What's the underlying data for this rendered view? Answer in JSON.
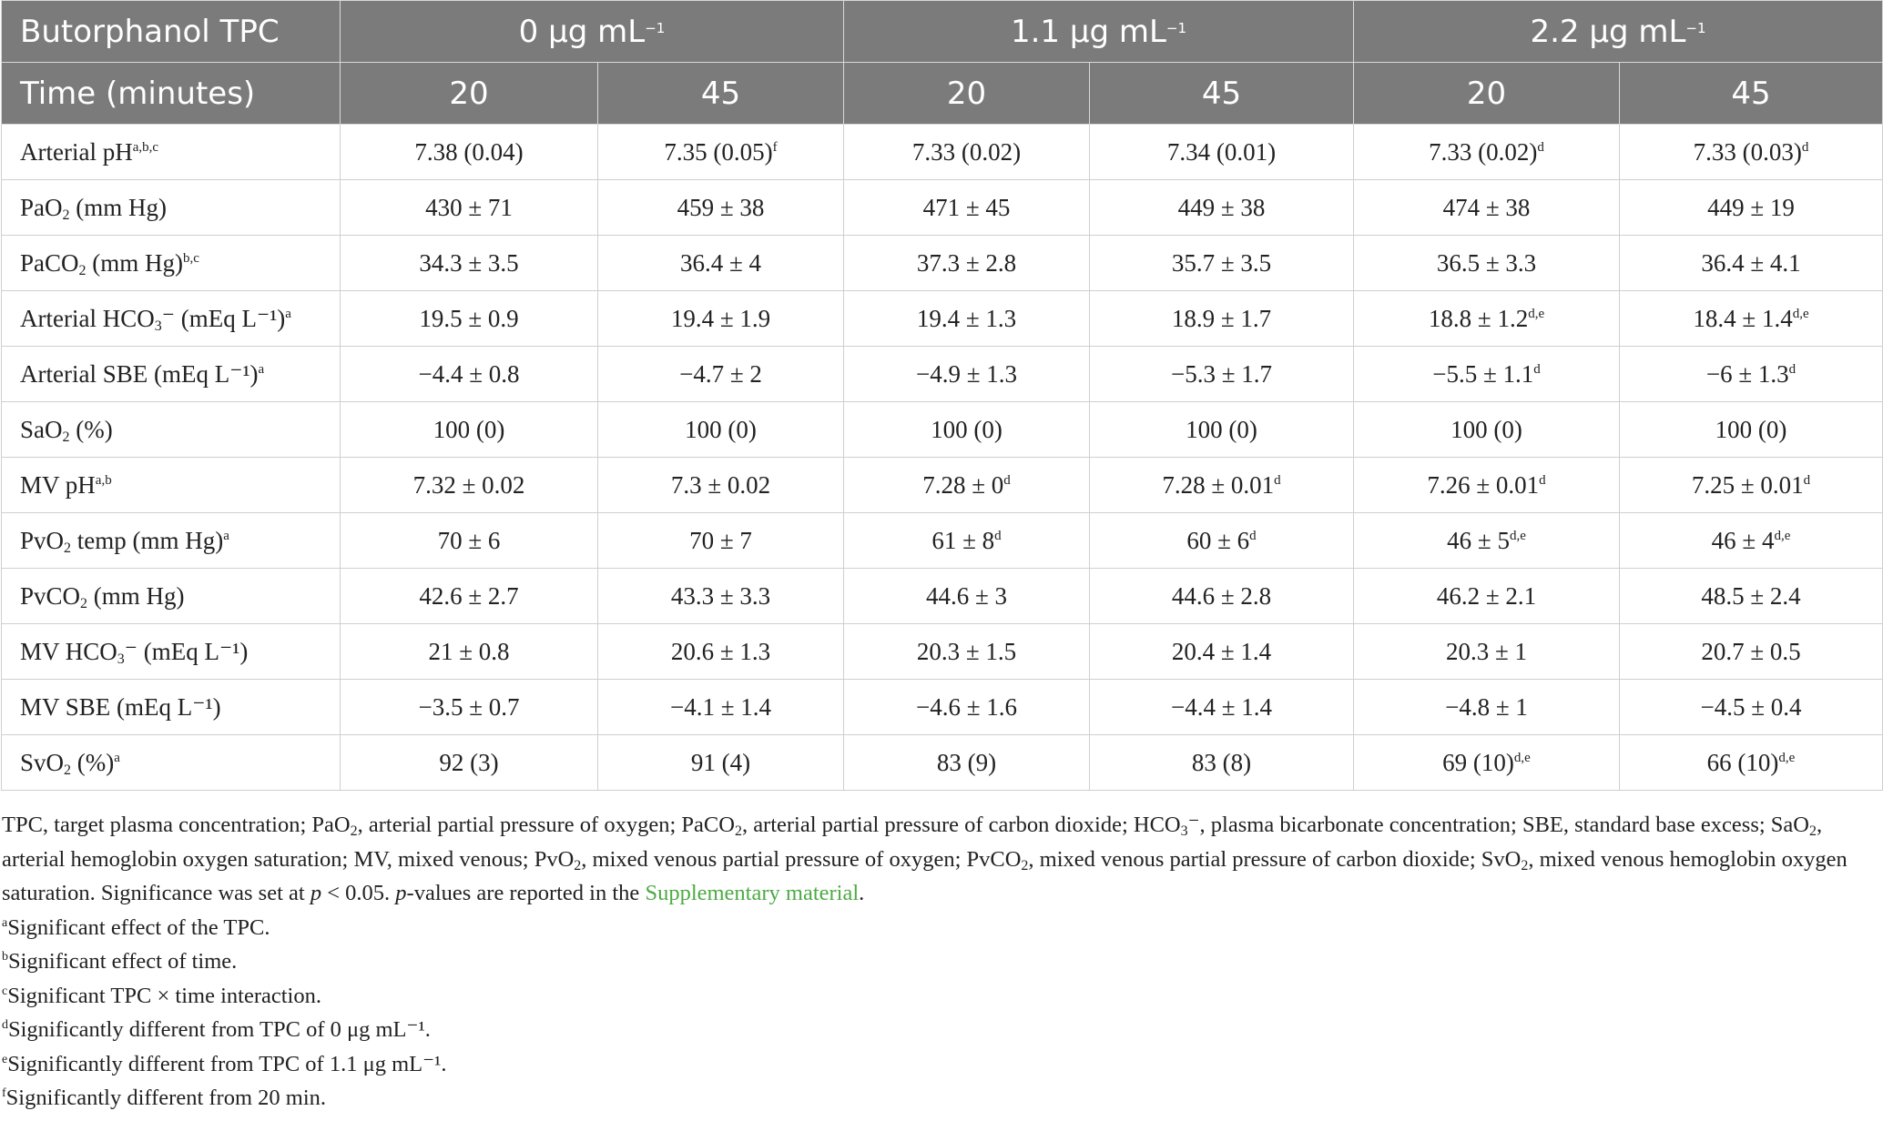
{
  "header": {
    "group_label": "Butorphanol TPC",
    "time_label": "Time (minutes)",
    "groups": [
      {
        "value": "0 μg mL",
        "exp": "−1"
      },
      {
        "value": "1.1 μg mL",
        "exp": "−1"
      },
      {
        "value": "2.2 μg mL",
        "exp": "−1"
      }
    ],
    "times": [
      "20",
      "45",
      "20",
      "45",
      "20",
      "45"
    ]
  },
  "rows": [
    {
      "label": {
        "pre": "Arterial pH",
        "sup": "a,b,c"
      },
      "cells": [
        {
          "v": "7.38 (0.04)"
        },
        {
          "v": "7.35 (0.05)",
          "s": "f"
        },
        {
          "v": "7.33 (0.02)"
        },
        {
          "v": "7.34 (0.01)"
        },
        {
          "v": "7.33 (0.02)",
          "s": "d"
        },
        {
          "v": "7.33 (0.03)",
          "s": "d"
        }
      ]
    },
    {
      "label": {
        "pre": "PaO",
        "sub": "2",
        "post": " (mm Hg)"
      },
      "cells": [
        {
          "v": "430 ± 71"
        },
        {
          "v": "459 ± 38"
        },
        {
          "v": "471 ± 45"
        },
        {
          "v": "449 ± 38"
        },
        {
          "v": "474 ± 38"
        },
        {
          "v": "449 ± 19"
        }
      ]
    },
    {
      "label": {
        "pre": "PaCO",
        "sub": "2",
        "post": " (mm Hg)",
        "sup": "b,c"
      },
      "cells": [
        {
          "v": "34.3 ± 3.5"
        },
        {
          "v": "36.4 ± 4"
        },
        {
          "v": "37.3 ± 2.8"
        },
        {
          "v": "35.7 ± 3.5"
        },
        {
          "v": "36.5 ± 3.3"
        },
        {
          "v": "36.4 ± 4.1"
        }
      ]
    },
    {
      "label": {
        "pre": "Arterial HCO",
        "sub": "3",
        "post": "⁻ (mEq L⁻¹)",
        "sup": "a"
      },
      "cells": [
        {
          "v": "19.5 ± 0.9"
        },
        {
          "v": "19.4 ± 1.9"
        },
        {
          "v": "19.4 ± 1.3"
        },
        {
          "v": "18.9 ± 1.7"
        },
        {
          "v": "18.8 ± 1.2",
          "s": "d,e"
        },
        {
          "v": "18.4 ± 1.4",
          "s": "d,e"
        }
      ]
    },
    {
      "label": {
        "pre": "Arterial SBE (mEq L⁻¹)",
        "sup": "a"
      },
      "cells": [
        {
          "v": "−4.4 ± 0.8"
        },
        {
          "v": "−4.7 ± 2"
        },
        {
          "v": "−4.9 ± 1.3"
        },
        {
          "v": "−5.3 ± 1.7"
        },
        {
          "v": "−5.5 ± 1.1",
          "s": "d"
        },
        {
          "v": "−6 ± 1.3",
          "s": "d"
        }
      ]
    },
    {
      "label": {
        "pre": "SaO",
        "sub": "2",
        "post": " (%)"
      },
      "cells": [
        {
          "v": "100 (0)"
        },
        {
          "v": "100 (0)"
        },
        {
          "v": "100 (0)"
        },
        {
          "v": "100 (0)"
        },
        {
          "v": "100 (0)"
        },
        {
          "v": "100 (0)"
        }
      ]
    },
    {
      "label": {
        "pre": "MV pH",
        "sup": "a,b"
      },
      "cells": [
        {
          "v": "7.32 ± 0.02"
        },
        {
          "v": "7.3 ± 0.02"
        },
        {
          "v": "7.28 ± 0",
          "s": "d"
        },
        {
          "v": "7.28 ± 0.01",
          "s": "d"
        },
        {
          "v": "7.26 ± 0.01",
          "s": "d"
        },
        {
          "v": "7.25 ± 0.01",
          "s": "d"
        }
      ]
    },
    {
      "label": {
        "pre": "PvO",
        "sub": "2",
        "post": " temp (mm Hg)",
        "sup": "a"
      },
      "cells": [
        {
          "v": "70 ± 6"
        },
        {
          "v": "70 ± 7"
        },
        {
          "v": "61 ± 8",
          "s": "d"
        },
        {
          "v": "60 ± 6",
          "s": "d"
        },
        {
          "v": "46 ± 5",
          "s": "d,e"
        },
        {
          "v": "46 ± 4",
          "s": "d,e"
        }
      ]
    },
    {
      "label": {
        "pre": "PvCO",
        "sub": "2",
        "post": " (mm Hg)"
      },
      "cells": [
        {
          "v": "42.6 ± 2.7"
        },
        {
          "v": "43.3 ± 3.3"
        },
        {
          "v": "44.6 ± 3"
        },
        {
          "v": "44.6 ± 2.8"
        },
        {
          "v": "46.2 ± 2.1"
        },
        {
          "v": "48.5 ± 2.4"
        }
      ]
    },
    {
      "label": {
        "pre": "MV HCO",
        "sub": "3",
        "post": "⁻ (mEq L⁻¹)"
      },
      "cells": [
        {
          "v": "21 ± 0.8"
        },
        {
          "v": "20.6 ± 1.3"
        },
        {
          "v": "20.3 ± 1.5"
        },
        {
          "v": "20.4 ± 1.4"
        },
        {
          "v": "20.3 ± 1"
        },
        {
          "v": "20.7 ± 0.5"
        }
      ]
    },
    {
      "label": {
        "pre": "MV SBE (mEq L⁻¹)"
      },
      "cells": [
        {
          "v": "−3.5 ± 0.7"
        },
        {
          "v": "−4.1 ± 1.4"
        },
        {
          "v": "−4.6 ± 1.6"
        },
        {
          "v": "−4.4 ± 1.4"
        },
        {
          "v": "−4.8 ± 1"
        },
        {
          "v": "−4.5 ± 0.4"
        }
      ]
    },
    {
      "label": {
        "pre": "SvO",
        "sub": "2",
        "post": " (%)",
        "sup": "a"
      },
      "cells": [
        {
          "v": "92 (3)"
        },
        {
          "v": "91 (4)"
        },
        {
          "v": "83 (9)"
        },
        {
          "v": "83 (8)"
        },
        {
          "v": "69 (10)",
          "s": "d,e"
        },
        {
          "v": "66 (10)",
          "s": "d,e"
        }
      ]
    }
  ],
  "notes": {
    "abbrev_segments": [
      {
        "t": "TPC, target plasma concentration; PaO"
      },
      {
        "sub": "2"
      },
      {
        "t": ", arterial partial pressure of oxygen; PaCO"
      },
      {
        "sub": "2"
      },
      {
        "t": ", arterial partial pressure of carbon dioxide; HCO"
      },
      {
        "sub": "3"
      },
      {
        "t": "⁻, plasma bicarbonate concentration; SBE, standard base excess; SaO"
      },
      {
        "sub": "2"
      },
      {
        "t": ", arterial hemoglobin oxygen saturation; MV, mixed venous; PvO"
      },
      {
        "sub": "2"
      },
      {
        "t": ", mixed venous partial pressure of oxygen; PvCO"
      },
      {
        "sub": "2"
      },
      {
        "t": ", mixed venous partial pressure of carbon dioxide; SvO"
      },
      {
        "sub": "2"
      },
      {
        "t": ", mixed venous hemoglobin oxygen saturation. Significance was set at "
      },
      {
        "i": "p"
      },
      {
        "t": " < 0.05. "
      },
      {
        "i": "p"
      },
      {
        "t": "-values are reported in the "
      },
      {
        "link": "Supplementary material"
      },
      {
        "t": "."
      }
    ],
    "footnotes": [
      {
        "mark": "a",
        "text": "Significant effect of the TPC."
      },
      {
        "mark": "b",
        "text": "Significant effect of time."
      },
      {
        "mark": "c",
        "text": "Significant TPC × time interaction."
      },
      {
        "mark": "d",
        "text": "Significantly different from TPC of 0 μg mL⁻¹."
      },
      {
        "mark": "e",
        "text": "Significantly different from TPC of 1.1 μg mL⁻¹."
      },
      {
        "mark": "f",
        "text": "Significantly different from 20 min."
      }
    ]
  }
}
